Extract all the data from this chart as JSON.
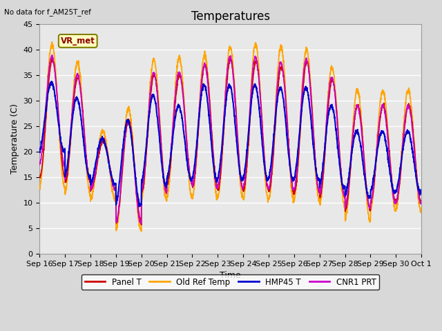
{
  "title": "Temperatures",
  "xlabel": "Time",
  "ylabel": "Temperature (C)",
  "top_left_text": "No data for f_AM25T_ref",
  "legend_label_text": "VR_met",
  "ylim": [
    0,
    45
  ],
  "series": {
    "Panel T": {
      "color": "#cc0000",
      "lw": 1.2
    },
    "Old Ref Temp": {
      "color": "#ffa500",
      "lw": 1.3
    },
    "HMP45 T": {
      "color": "#0000cc",
      "lw": 1.5
    },
    "CNR1 PRT": {
      "color": "#cc00cc",
      "lw": 1.2
    }
  },
  "xtick_labels": [
    "Sep 16",
    "Sep 17",
    "Sep 18",
    "Sep 19",
    "Sep 20",
    "Sep 21",
    "Sep 22",
    "Sep 23",
    "Sep 24",
    "Sep 25",
    "Sep 26",
    "Sep 27",
    "Sep 28",
    "Sep 29",
    "Sep 30",
    "Oct 1"
  ],
  "title_fontsize": 12,
  "axis_fontsize": 9,
  "tick_fontsize": 8
}
